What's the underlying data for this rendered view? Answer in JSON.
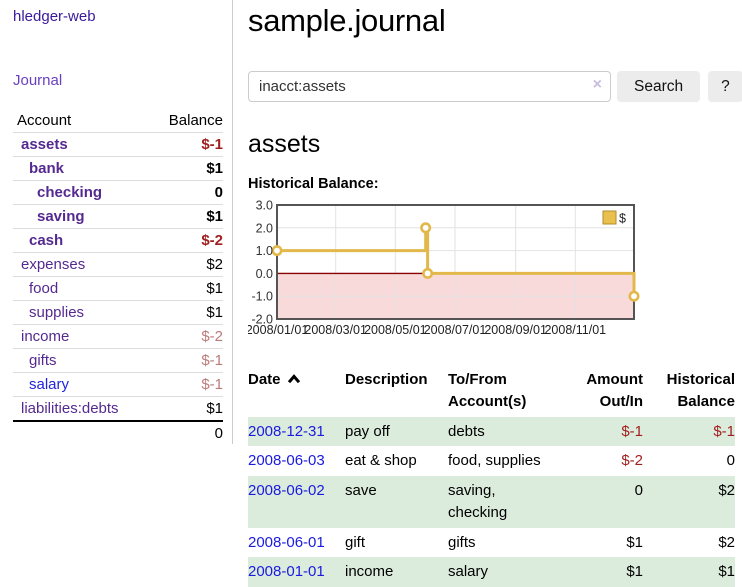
{
  "brand": "hledger-web",
  "nav": {
    "journal": "Journal"
  },
  "sidebar": {
    "header": {
      "account": "Account",
      "balance": "Balance"
    },
    "accounts": [
      {
        "name": "assets",
        "balance": "$-1",
        "depth": 1,
        "bold": true,
        "balance_tone": "neg-strong",
        "visited": true
      },
      {
        "name": "bank",
        "balance": "$1",
        "depth": 2,
        "bold": true,
        "balance_tone": "",
        "visited": true
      },
      {
        "name": "checking",
        "balance": "0",
        "depth": 3,
        "bold": true,
        "balance_tone": "",
        "visited": true
      },
      {
        "name": "saving",
        "balance": "$1",
        "depth": 3,
        "bold": true,
        "balance_tone": "",
        "visited": true
      },
      {
        "name": "cash",
        "balance": "$-2",
        "depth": 2,
        "bold": true,
        "balance_tone": "neg-strong",
        "visited": true
      },
      {
        "name": "expenses",
        "balance": "$2",
        "depth": 1,
        "bold": false,
        "balance_tone": "",
        "visited": true
      },
      {
        "name": "food",
        "balance": "$1",
        "depth": 2,
        "bold": false,
        "balance_tone": "",
        "visited": true
      },
      {
        "name": "supplies",
        "balance": "$1",
        "depth": 2,
        "bold": false,
        "balance_tone": "",
        "visited": true
      },
      {
        "name": "income",
        "balance": "$-2",
        "depth": 1,
        "bold": false,
        "balance_tone": "neg-muted",
        "visited": true
      },
      {
        "name": "gifts",
        "balance": "$-1",
        "depth": 2,
        "bold": false,
        "balance_tone": "neg-muted",
        "visited": true
      },
      {
        "name": "salary",
        "balance": "$-1",
        "depth": 2,
        "bold": false,
        "balance_tone": "neg-muted",
        "visited": false
      },
      {
        "name": "liabilities:debts",
        "balance": "$1",
        "depth": 1,
        "bold": false,
        "balance_tone": "",
        "visited": true
      }
    ],
    "total": "0"
  },
  "main": {
    "title": "sample.journal",
    "search": {
      "value": "inacct:assets",
      "clear": "×",
      "search_label": "Search",
      "help_label": "?"
    },
    "account_heading": "assets",
    "chart_label": "Historical Balance:"
  },
  "chart_data": {
    "type": "line",
    "title": "Historical Balance",
    "step": true,
    "legend_entries": [
      "$"
    ],
    "legend_position": "top-right",
    "x_range": [
      "2008-01-01",
      "2008-12-31"
    ],
    "ylim": [
      -2.0,
      3.0
    ],
    "yticks": [
      "3.0",
      "2.0",
      "1.0",
      "0.0",
      "-1.0",
      "-2.0"
    ],
    "xticks": [
      "2008/01/01",
      "2008/03/01",
      "2008/05/01",
      "2008/07/01",
      "2008/09/01",
      "2008/11/01"
    ],
    "series": [
      {
        "name": "$",
        "points": [
          {
            "x": "2008-01-01",
            "y": 1
          },
          {
            "x": "2008-06-01",
            "y": 2
          },
          {
            "x": "2008-06-03",
            "y": 0
          },
          {
            "x": "2008-12-31",
            "y": -1
          }
        ]
      }
    ],
    "grid": true,
    "negative_region_shaded": true,
    "colors": {
      "line": "#e3b84a",
      "marker_fill": "#ffffff",
      "negative_region": "#f9dada",
      "zero_line": "#8b0000",
      "border": "#545454",
      "grid": "#e2e2e2",
      "legend_fill": "#e9c04d"
    }
  },
  "register": {
    "headers": {
      "date": "Date",
      "description": "Description",
      "accounts": "To/From Account(s)",
      "amount": "Amount Out/In",
      "balance": "Historical Balance"
    },
    "sort": {
      "column": "date",
      "direction": "asc"
    },
    "rows": [
      {
        "date": "2008-12-31",
        "description": "pay off",
        "accounts": "debts",
        "amount": "$-1",
        "balance": "$-1"
      },
      {
        "date": "2008-06-03",
        "description": "eat & shop",
        "accounts": "food, supplies",
        "amount": "$-2",
        "balance": "0"
      },
      {
        "date": "2008-06-02",
        "description": "save",
        "accounts": "saving, checking",
        "amount": "0",
        "balance": "$2"
      },
      {
        "date": "2008-06-01",
        "description": "gift",
        "accounts": "gifts",
        "amount": "$1",
        "balance": "$2"
      },
      {
        "date": "2008-01-01",
        "description": "income",
        "accounts": "salary",
        "amount": "$1",
        "balance": "$1"
      }
    ]
  }
}
